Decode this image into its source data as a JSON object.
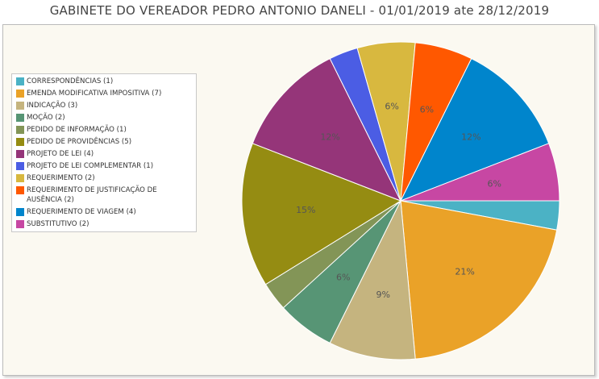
{
  "title": "GABINETE DO VEREADOR PEDRO ANTONIO DANELI - 01/01/2019 ate 28/12/2019",
  "chart_data": {
    "type": "pie",
    "title": "GABINETE DO VEREADOR PEDRO ANTONIO DANELI - 01/01/2019 ate 28/12/2019",
    "legend_position": "left",
    "slices": [
      {
        "label": "CORRESPONDÊNCIAS (1)",
        "value": 1,
        "color": "#4bb2c5",
        "pct_label": ""
      },
      {
        "label": "EMENDA MODIFICATIVA IMPOSITIVA (7)",
        "value": 7,
        "color": "#eaa228",
        "pct_label": "21%"
      },
      {
        "label": "INDICAÇÃO (3)",
        "value": 3,
        "color": "#c5b47f",
        "pct_label": "9%"
      },
      {
        "label": "MOÇÃO (2)",
        "value": 2,
        "color": "#579575",
        "pct_label": "6%"
      },
      {
        "label": "PEDIDO DE INFORMAÇÃO (1)",
        "value": 1,
        "color": "#839557",
        "pct_label": ""
      },
      {
        "label": "PEDIDO DE PROVIDÊNCIAS (5)",
        "value": 5,
        "color": "#958c12",
        "pct_label": "15%"
      },
      {
        "label": "PROJETO DE LEI (4)",
        "value": 4,
        "color": "#953579",
        "pct_label": "12%"
      },
      {
        "label": "PROJETO DE LEI COMPLEMENTAR (1)",
        "value": 1,
        "color": "#4b5de4",
        "pct_label": ""
      },
      {
        "label": "REQUERIMENTO (2)",
        "value": 2,
        "color": "#d8b83f",
        "pct_label": "6%"
      },
      {
        "label": "REQUERIMENTO DE JUSTIFICAÇÃO DE AUSÊNCIA (2)",
        "value": 2,
        "color": "#ff5800",
        "pct_label": "6%"
      },
      {
        "label": "REQUERIMENTO DE VIAGEM (4)",
        "value": 4,
        "color": "#0085cc",
        "pct_label": "12%"
      },
      {
        "label": "SUBSTITUTIVO (2)",
        "value": 2,
        "color": "#c747a3",
        "pct_label": "6%"
      }
    ]
  }
}
